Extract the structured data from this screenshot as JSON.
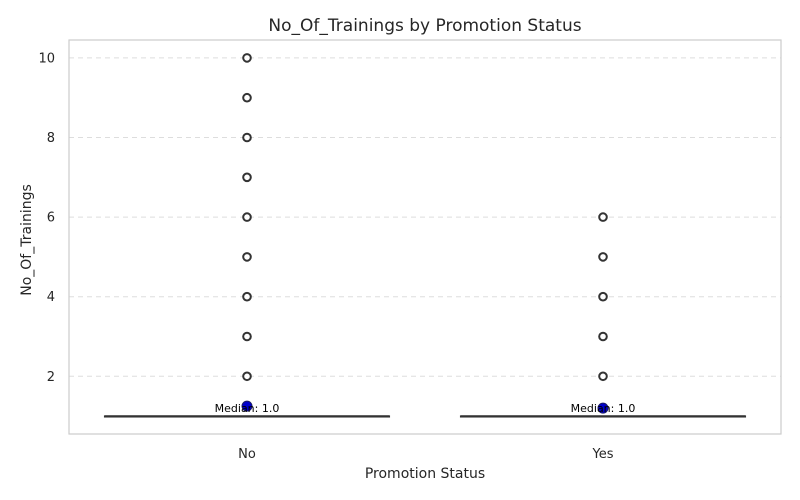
{
  "chart_data": {
    "type": "box",
    "title": "No_Of_Trainings by Promotion Status",
    "xlabel": "Promotion Status",
    "ylabel": "No_Of_Trainings",
    "categories": [
      "No",
      "Yes"
    ],
    "ylim": [
      0.55,
      10.45
    ],
    "yticks": [
      2,
      4,
      6,
      8,
      10
    ],
    "grid": "y-dashed",
    "boxes": [
      {
        "category": "No",
        "median": 1.0,
        "q1": 1.0,
        "q3": 1.0,
        "whisker_low": 1.0,
        "whisker_high": 1.0,
        "mean": 1.25,
        "median_label": "Median: 1.0",
        "outliers": [
          2,
          3,
          4,
          5,
          6,
          7,
          8,
          9,
          10
        ]
      },
      {
        "category": "Yes",
        "median": 1.0,
        "q1": 1.0,
        "q3": 1.0,
        "whisker_low": 1.0,
        "whisker_high": 1.0,
        "mean": 1.2,
        "median_label": "Median: 1.0",
        "outliers": [
          2,
          3,
          4,
          5,
          6
        ]
      }
    ],
    "colors": {
      "box_line": "#333333",
      "mean_marker": "#0000cc",
      "grid": "#dddddd",
      "frame": "#cccccc"
    }
  }
}
